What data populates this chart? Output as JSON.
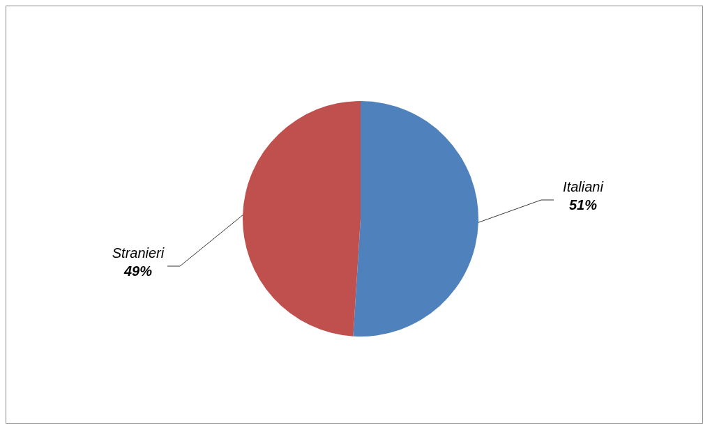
{
  "chart_data": {
    "type": "pie",
    "categories": [
      "Italiani",
      "Stranieri"
    ],
    "values": [
      51,
      49
    ],
    "colors": [
      "#4f81bd",
      "#c0504d"
    ],
    "value_labels": [
      "51%",
      "49%"
    ]
  }
}
